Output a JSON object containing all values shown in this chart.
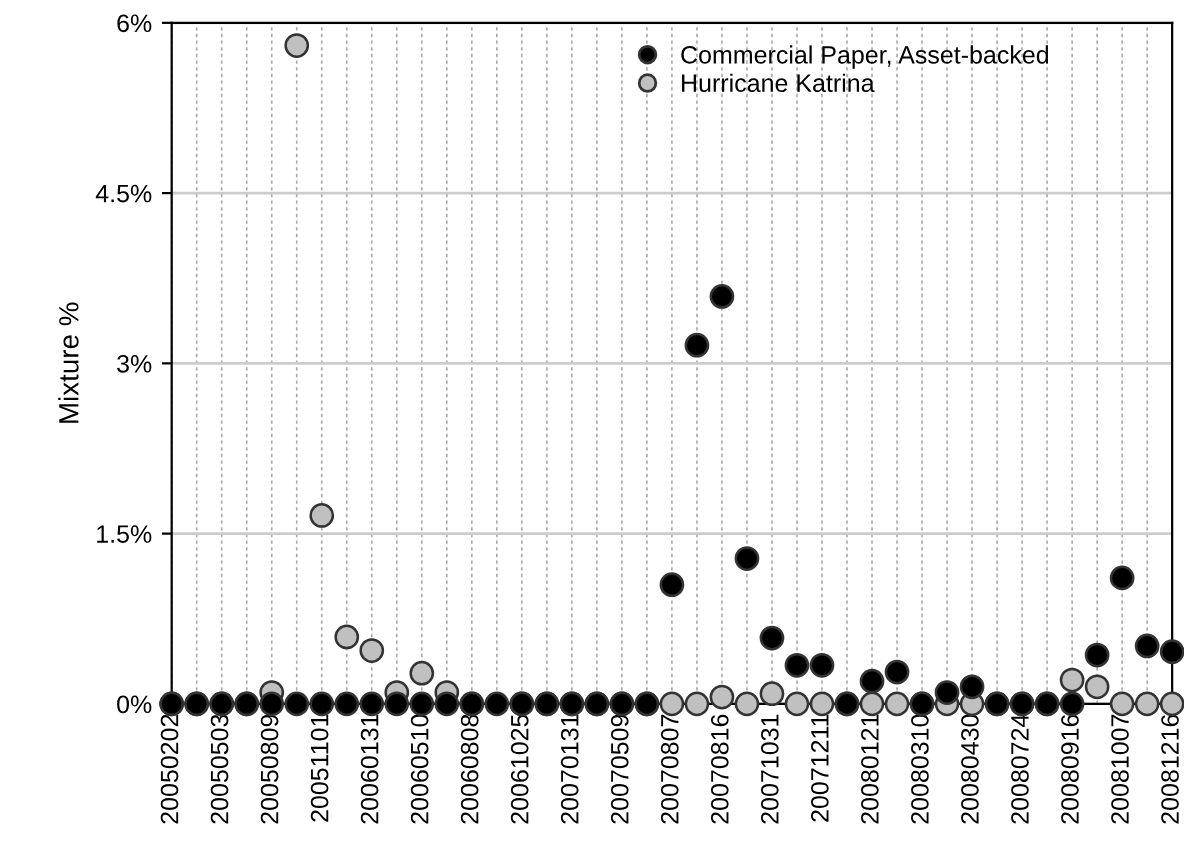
{
  "chart_data": {
    "type": "scatter",
    "ylabel": "Mixture %",
    "categories": [
      "20050202",
      null,
      "20050503",
      null,
      "20050809",
      null,
      "20051101",
      null,
      "20060131",
      null,
      "20060510",
      null,
      "20060808",
      null,
      "20061025",
      null,
      "20070131",
      null,
      "20070509",
      null,
      "20070807",
      null,
      "20070816",
      null,
      "20071031",
      null,
      "20071211",
      null,
      "20080121",
      null,
      "20080310",
      null,
      "20080430",
      null,
      "20080724",
      null,
      "20080916",
      null,
      "20081007",
      null,
      "20081216"
    ],
    "series": [
      {
        "name": "Hurricane Katrina",
        "color": "#c0c0c0",
        "values": [
          0,
          0,
          0,
          0,
          0.1,
          5.8,
          1.66,
          0.59,
          0.47,
          0.1,
          0.27,
          0.1,
          0,
          null,
          0,
          0,
          0,
          0,
          0,
          0,
          0,
          0,
          0.06,
          0,
          0.09,
          0,
          0,
          0,
          0,
          0,
          0,
          0,
          0,
          0,
          0,
          0,
          0.21,
          0.15,
          0,
          0,
          0
        ]
      },
      {
        "name": "Commercial Paper, Asset-backed",
        "color": "#000000",
        "values": [
          0,
          0,
          0,
          0,
          0,
          0,
          0,
          0,
          0,
          0,
          0,
          0,
          0,
          0,
          0,
          0,
          0,
          0,
          0,
          0,
          1.05,
          3.16,
          3.59,
          1.28,
          0.58,
          0.34,
          0.34,
          0,
          0.2,
          0.28,
          0,
          0.1,
          0.15,
          0,
          0,
          0,
          0,
          0.43,
          1.11,
          0.51,
          0.46
        ]
      }
    ],
    "ylim": [
      0,
      6
    ],
    "yticks": [
      {
        "value": 0,
        "label": "0%"
      },
      {
        "value": 1.5,
        "label": "1.5%"
      },
      {
        "value": 3,
        "label": "3%"
      },
      {
        "value": 4.5,
        "label": "4.5%"
      },
      {
        "value": 6,
        "label": "6%"
      }
    ],
    "grid": true,
    "legend": "top right",
    "marker": "circle"
  }
}
